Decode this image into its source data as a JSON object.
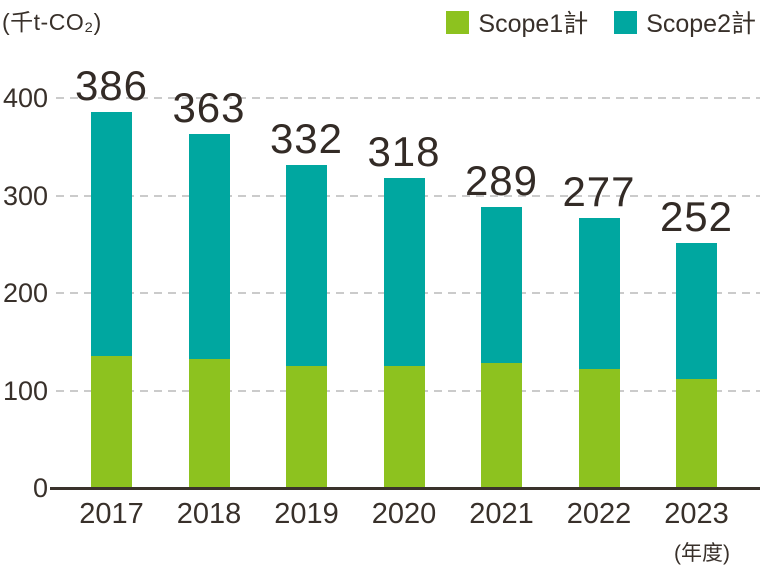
{
  "unit_label": "(千t-CO₂)",
  "x_axis_note": "(年度)",
  "legend": {
    "items": [
      {
        "label": "Scope1計",
        "color": "#8dc21f"
      },
      {
        "label": "Scope2計",
        "color": "#00a7a0"
      }
    ]
  },
  "colors": {
    "scope1": "#8dc21f",
    "scope2": "#00a7a0",
    "text": "#38302a",
    "gridline": "#cbcbcb",
    "axis": "#3a322c"
  },
  "chart_data": {
    "type": "bar",
    "stacked": true,
    "title": "",
    "ylabel": "(千t-CO₂)",
    "xlabel": "(年度)",
    "categories": [
      "2017",
      "2018",
      "2019",
      "2020",
      "2021",
      "2022",
      "2023"
    ],
    "series": [
      {
        "name": "Scope1計",
        "color": "#8dc21f",
        "values": [
          136,
          132,
          125,
          125,
          128,
          122,
          112
        ]
      },
      {
        "name": "Scope2計",
        "color": "#00a7a0",
        "values": [
          250,
          231,
          207,
          193,
          161,
          155,
          140
        ]
      }
    ],
    "totals": [
      386,
      363,
      332,
      318,
      289,
      277,
      252
    ],
    "total_labels_shown": true,
    "ylim": [
      0,
      400
    ],
    "yticks": [
      0,
      100,
      200,
      300,
      400
    ],
    "grid": "horizontal-dashed",
    "legend_position": "top-right"
  }
}
